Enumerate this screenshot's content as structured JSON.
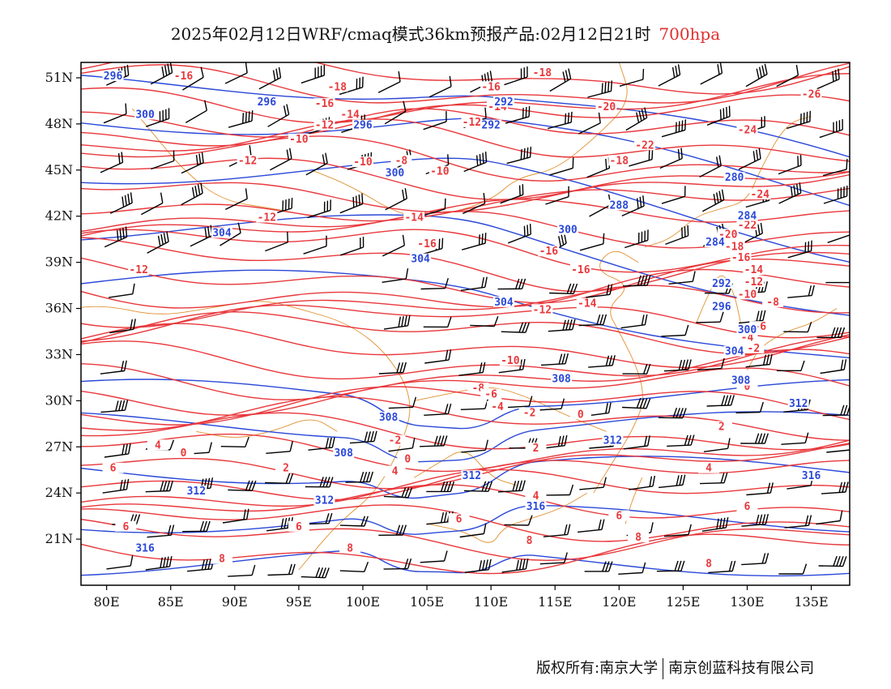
{
  "header": {
    "title": "2025年02月12日WRF/cmaq模式36km预报产品:02月12日21时",
    "level": "700hpa",
    "level_color": "#e03030"
  },
  "footer": {
    "left": "版权所有:南京大学",
    "right": "南京创蓝科技有限公司"
  },
  "map": {
    "lon_range": [
      78,
      138
    ],
    "lat_range": [
      18,
      52
    ],
    "lon_ticks": [
      "80E",
      "85E",
      "90E",
      "95E",
      "100E",
      "105E",
      "110E",
      "115E",
      "120E",
      "125E",
      "130E",
      "135E"
    ],
    "lat_ticks": [
      "51N",
      "48N",
      "45N",
      "42N",
      "39N",
      "36N",
      "33N",
      "30N",
      "27N",
      "24N",
      "21N"
    ],
    "colors": {
      "temperature": "#e8383c",
      "geopotential": "#2a48d8",
      "boundaries": "#e09030",
      "wind_barbs": "#000000"
    },
    "temperature_labels": [
      {
        "text": "-16",
        "lon": 86,
        "lat": 51
      },
      {
        "text": "-18",
        "lon": 98,
        "lat": 50.3
      },
      {
        "text": "-16",
        "lon": 97,
        "lat": 49.2
      },
      {
        "text": "-14",
        "lon": 99,
        "lat": 48.5
      },
      {
        "text": "-12",
        "lon": 97,
        "lat": 47.8
      },
      {
        "text": "-10",
        "lon": 95,
        "lat": 46.9
      },
      {
        "text": "-10",
        "lon": 100,
        "lat": 45.4
      },
      {
        "text": "-8",
        "lon": 103,
        "lat": 45.5
      },
      {
        "text": "-10",
        "lon": 106,
        "lat": 44.8
      },
      {
        "text": "-12",
        "lon": 91,
        "lat": 45.5
      },
      {
        "text": "-12",
        "lon": 92.5,
        "lat": 41.8
      },
      {
        "text": "-12",
        "lon": 82.5,
        "lat": 38.4
      },
      {
        "text": "-14",
        "lon": 104,
        "lat": 41.8
      },
      {
        "text": "-16",
        "lon": 105,
        "lat": 40.1
      },
      {
        "text": "-16",
        "lon": 114.5,
        "lat": 39.6
      },
      {
        "text": "-16",
        "lon": 117,
        "lat": 38.4
      },
      {
        "text": "-14",
        "lon": 117.5,
        "lat": 36.2
      },
      {
        "text": "-12",
        "lon": 114,
        "lat": 35.8
      },
      {
        "text": "-10",
        "lon": 111.5,
        "lat": 32.5
      },
      {
        "text": "-8",
        "lon": 109,
        "lat": 30.7
      },
      {
        "text": "-6",
        "lon": 110,
        "lat": 30.3
      },
      {
        "text": "-4",
        "lon": 110.5,
        "lat": 29.5
      },
      {
        "text": "-2",
        "lon": 113,
        "lat": 29.1
      },
      {
        "text": "0",
        "lon": 117,
        "lat": 29.0
      },
      {
        "text": "-2",
        "lon": 102.5,
        "lat": 27.3
      },
      {
        "text": "0",
        "lon": 103.5,
        "lat": 26.1
      },
      {
        "text": "0",
        "lon": 86,
        "lat": 26.5
      },
      {
        "text": "2",
        "lon": 94,
        "lat": 25.5
      },
      {
        "text": "4",
        "lon": 102.5,
        "lat": 25.3
      },
      {
        "text": "4",
        "lon": 84,
        "lat": 27.0
      },
      {
        "text": "6",
        "lon": 80.5,
        "lat": 25.5
      },
      {
        "text": "2",
        "lon": 113.5,
        "lat": 26.8
      },
      {
        "text": "4",
        "lon": 113.5,
        "lat": 23.7
      },
      {
        "text": "6",
        "lon": 107.5,
        "lat": 22.2
      },
      {
        "text": "6",
        "lon": 95,
        "lat": 21.7
      },
      {
        "text": "6",
        "lon": 81.5,
        "lat": 21.7
      },
      {
        "text": "8",
        "lon": 89,
        "lat": 19.6
      },
      {
        "text": "8",
        "lon": 99,
        "lat": 20.3
      },
      {
        "text": "8",
        "lon": 113,
        "lat": 20.8
      },
      {
        "text": "6",
        "lon": 120,
        "lat": 22.4
      },
      {
        "text": "8",
        "lon": 121.5,
        "lat": 21.0
      },
      {
        "text": "8",
        "lon": 127,
        "lat": 19.3
      },
      {
        "text": "6",
        "lon": 130,
        "lat": 23.0
      },
      {
        "text": "4",
        "lon": 127,
        "lat": 25.5
      },
      {
        "text": "2",
        "lon": 128,
        "lat": 28.2
      },
      {
        "text": "0",
        "lon": 130,
        "lat": 30.8
      },
      {
        "text": "-2",
        "lon": 130.5,
        "lat": 33.3
      },
      {
        "text": "-4",
        "lon": 130,
        "lat": 34.0
      },
      {
        "text": "-6",
        "lon": 131,
        "lat": 34.7
      },
      {
        "text": "-8",
        "lon": 132,
        "lat": 36.3
      },
      {
        "text": "-10",
        "lon": 130,
        "lat": 36.8
      },
      {
        "text": "-12",
        "lon": 130.5,
        "lat": 37.6
      },
      {
        "text": "-14",
        "lon": 130.5,
        "lat": 38.4
      },
      {
        "text": "-16",
        "lon": 129.5,
        "lat": 39.2
      },
      {
        "text": "-18",
        "lon": 129,
        "lat": 39.9
      },
      {
        "text": "-20",
        "lon": 128.5,
        "lat": 40.7
      },
      {
        "text": "-22",
        "lon": 130,
        "lat": 41.3
      },
      {
        "text": "-24",
        "lon": 131,
        "lat": 43.3
      },
      {
        "text": "-22",
        "lon": 122,
        "lat": 46.5
      },
      {
        "text": "-20",
        "lon": 119,
        "lat": 49
      },
      {
        "text": "-18",
        "lon": 114,
        "lat": 51.2
      },
      {
        "text": "-16",
        "lon": 110,
        "lat": 50.3
      },
      {
        "text": "-14",
        "lon": 110.5,
        "lat": 49
      },
      {
        "text": "-12",
        "lon": 108.5,
        "lat": 48
      },
      {
        "text": "-18",
        "lon": 120,
        "lat": 45.5
      },
      {
        "text": "-24",
        "lon": 130,
        "lat": 47.5
      },
      {
        "text": "-26",
        "lon": 135,
        "lat": 49.8
      }
    ],
    "height_labels": [
      {
        "text": "296",
        "lon": 80.5,
        "lat": 51
      },
      {
        "text": "300",
        "lon": 83,
        "lat": 48.5
      },
      {
        "text": "296",
        "lon": 92.5,
        "lat": 49.3
      },
      {
        "text": "296",
        "lon": 100,
        "lat": 47.8
      },
      {
        "text": "292",
        "lon": 111,
        "lat": 49.3
      },
      {
        "text": "292",
        "lon": 110,
        "lat": 47.8
      },
      {
        "text": "300",
        "lon": 102.5,
        "lat": 44.7
      },
      {
        "text": "304",
        "lon": 89,
        "lat": 40.8
      },
      {
        "text": "304",
        "lon": 104.5,
        "lat": 39.1
      },
      {
        "text": "288",
        "lon": 120,
        "lat": 42.6
      },
      {
        "text": "300",
        "lon": 116,
        "lat": 41.0
      },
      {
        "text": "304",
        "lon": 111,
        "lat": 36.3
      },
      {
        "text": "308",
        "lon": 115.5,
        "lat": 31.3
      },
      {
        "text": "308",
        "lon": 102,
        "lat": 28.8
      },
      {
        "text": "308",
        "lon": 98.5,
        "lat": 26.5
      },
      {
        "text": "312",
        "lon": 108.5,
        "lat": 25.0
      },
      {
        "text": "312",
        "lon": 97,
        "lat": 23.4
      },
      {
        "text": "312",
        "lon": 87,
        "lat": 24.0
      },
      {
        "text": "316",
        "lon": 83,
        "lat": 20.3
      },
      {
        "text": "316",
        "lon": 113.5,
        "lat": 23.0
      },
      {
        "text": "312",
        "lon": 119.5,
        "lat": 27.3
      },
      {
        "text": "312",
        "lon": 134,
        "lat": 29.7
      },
      {
        "text": "316",
        "lon": 135,
        "lat": 25.0
      },
      {
        "text": "308",
        "lon": 129.5,
        "lat": 31.2
      },
      {
        "text": "304",
        "lon": 129,
        "lat": 33.1
      },
      {
        "text": "300",
        "lon": 130,
        "lat": 34.5
      },
      {
        "text": "296",
        "lon": 128,
        "lat": 36.0
      },
      {
        "text": "292",
        "lon": 128,
        "lat": 37.5
      },
      {
        "text": "284",
        "lon": 130,
        "lat": 41.9
      },
      {
        "text": "280",
        "lon": 129,
        "lat": 44.4
      },
      {
        "text": "284",
        "lon": 127.5,
        "lat": 40.2
      }
    ]
  }
}
